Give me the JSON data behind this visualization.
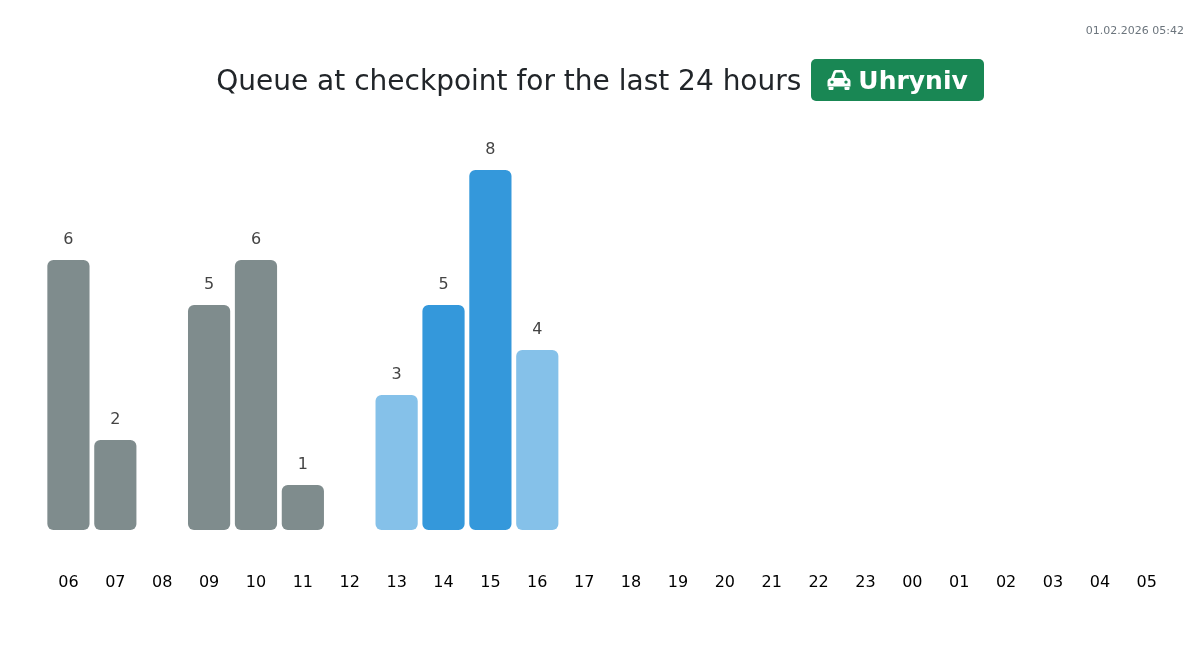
{
  "chart_data": {
    "type": "bar",
    "title": "Queue at checkpoint for the last 24 hours",
    "subtitle": "Uhryniv",
    "annotations": [
      "01.02.2026 05:42"
    ],
    "categories": [
      "06",
      "07",
      "08",
      "09",
      "10",
      "11",
      "12",
      "13",
      "14",
      "15",
      "16",
      "17",
      "18",
      "19",
      "20",
      "21",
      "22",
      "23",
      "00",
      "01",
      "02",
      "03",
      "04",
      "05"
    ],
    "values": [
      6,
      2,
      null,
      5,
      6,
      1,
      null,
      3,
      5,
      8,
      4,
      null,
      null,
      null,
      null,
      null,
      null,
      null,
      null,
      null,
      null,
      null,
      null,
      null
    ],
    "colors": [
      "#7f8c8d",
      "#7f8c8d",
      null,
      "#7f8c8d",
      "#7f8c8d",
      "#7f8c8d",
      null,
      "#85c1e9",
      "#3498db",
      "#3498db",
      "#85c1e9",
      null,
      null,
      null,
      null,
      null,
      null,
      null,
      null,
      null,
      null,
      null,
      null,
      null
    ],
    "data_labels": true,
    "tick_labels": "x"
  }
}
